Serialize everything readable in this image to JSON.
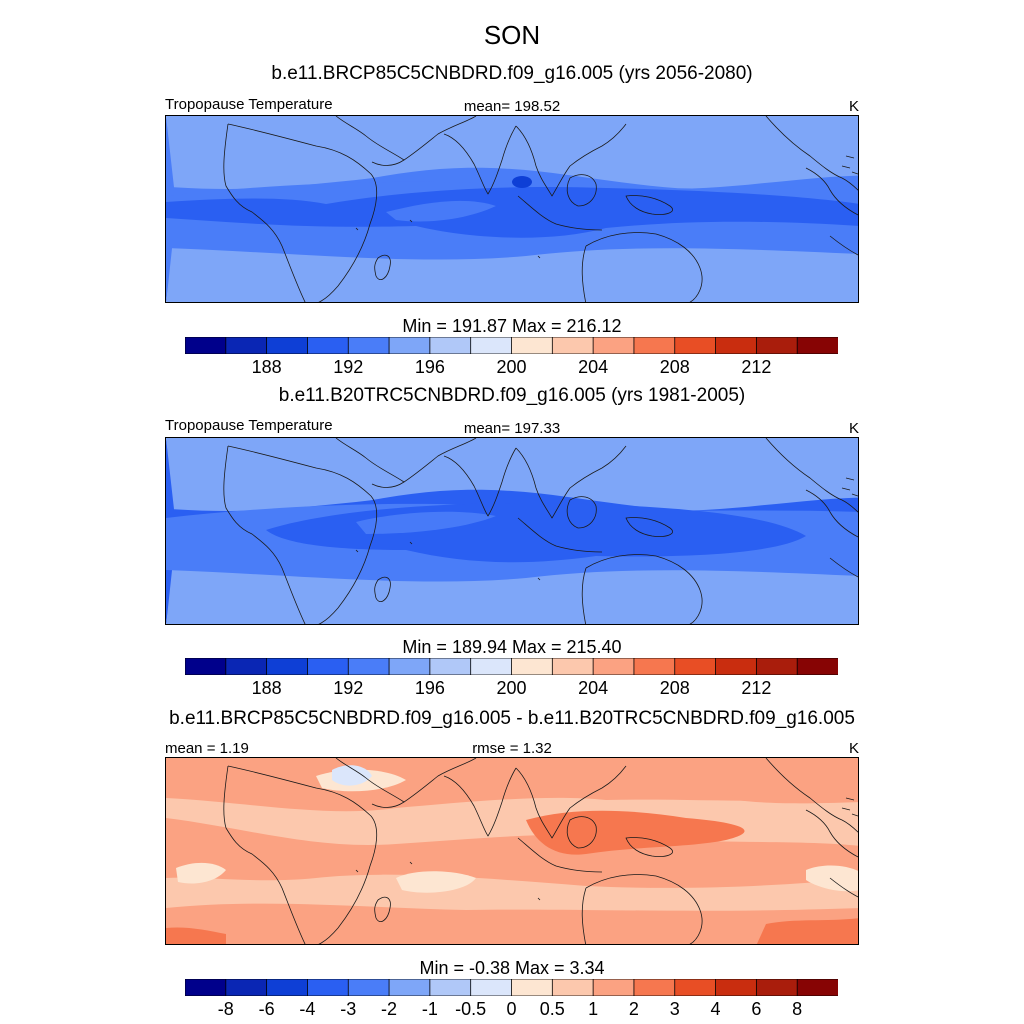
{
  "title": "SON",
  "panels": [
    {
      "subtitle": "b.e11.BRCP85C5CNBDRD.f09_g16.005 (yrs 2056-2080)",
      "left_label": "Tropopause Temperature",
      "center_label": "mean= 198.52",
      "units": "K",
      "minmax": "Min = 191.87 Max = 216.12",
      "kind": "abs",
      "stats": {
        "mean": 198.52,
        "min": 191.87,
        "max": 216.12
      }
    },
    {
      "subtitle": "b.e11.B20TRC5CNBDRD.f09_g16.005 (yrs 1981-2005)",
      "left_label": "Tropopause Temperature",
      "center_label": "mean= 197.33",
      "units": "K",
      "minmax": "Min = 189.94 Max = 215.40",
      "kind": "abs",
      "stats": {
        "mean": 197.33,
        "min": 189.94,
        "max": 215.4
      }
    },
    {
      "subtitle": "b.e11.BRCP85C5CNBDRD.f09_g16.005 - b.e11.B20TRC5CNBDRD.f09_g16.005",
      "left_label": "mean =   1.19",
      "center_label": "rmse =   1.32",
      "units": "K",
      "minmax": "Min =  -0.38 Max =   3.34",
      "kind": "diff",
      "stats": {
        "mean": 1.19,
        "rmse": 1.32,
        "min": -0.38,
        "max": 3.34
      }
    }
  ],
  "colorbar_abs": {
    "colors": [
      "#00008b",
      "#0a26b4",
      "#0e3fd6",
      "#2a5ff2",
      "#4a7df8",
      "#7ea6f8",
      "#b0c8f8",
      "#dbe6fb",
      "#fde6d2",
      "#fcc8ad",
      "#fba282",
      "#f6774f",
      "#e84e25",
      "#c92d0f",
      "#a91d0c",
      "#870404"
    ],
    "labels": [
      "188",
      "192",
      "196",
      "200",
      "204",
      "208",
      "212"
    ],
    "label_boundaries": [
      2,
      4,
      6,
      8,
      10,
      12,
      14
    ]
  },
  "colorbar_diff": {
    "colors": [
      "#00008b",
      "#0a26b4",
      "#0e3fd6",
      "#2a5ff2",
      "#4a7df8",
      "#7ea6f8",
      "#b0c8f8",
      "#dbe6fb",
      "#fde6d2",
      "#fcc8ad",
      "#fba282",
      "#f6774f",
      "#e84e25",
      "#c92d0f",
      "#a91d0c",
      "#870404"
    ],
    "labels": [
      "-8",
      "-6",
      "-4",
      "-3",
      "-2",
      "-1",
      "-0.5",
      "0",
      "0.5",
      "1",
      "2",
      "3",
      "4",
      "6",
      "8"
    ],
    "label_boundaries": [
      1,
      2,
      3,
      4,
      5,
      6,
      7,
      8,
      9,
      10,
      11,
      12,
      13,
      14,
      15
    ]
  }
}
